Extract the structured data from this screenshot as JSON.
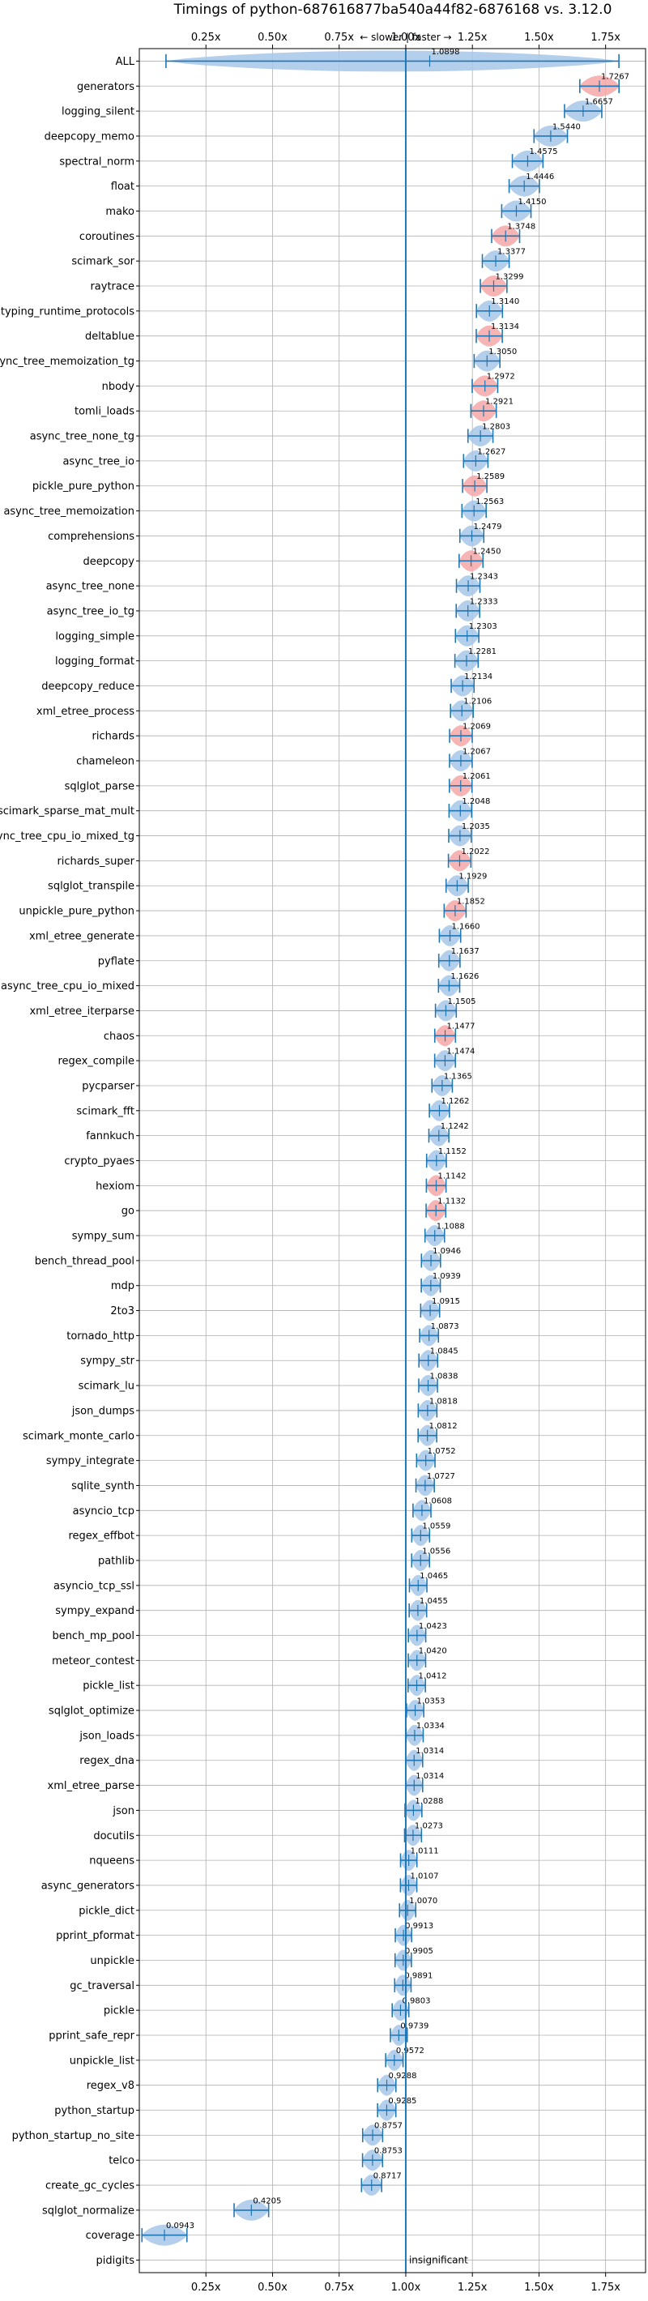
{
  "chart_data": {
    "type": "violin",
    "title": "Timings of python-687616877ba540a44f82-6876168 vs. 3.12.0",
    "xlim": [
      0.0,
      1.9
    ],
    "xticks": [
      "0.25x",
      "0.50x",
      "0.75x",
      "1.00x",
      "1.25x",
      "1.50x",
      "1.75x"
    ],
    "xtick_values": [
      0.25,
      0.5,
      0.75,
      1.0,
      1.25,
      1.5,
      1.75
    ],
    "grid": true,
    "reference_line": 1.0,
    "top_annotation": "← slower | faster →",
    "insignificant_label": "insignificant",
    "colors": {
      "faster_sig": "#f4a7a7",
      "neutral": "#a7c7e7",
      "line": "#1f77b4"
    },
    "benchmarks": [
      {
        "name": "ALL",
        "value": 1.0898,
        "lo": 0.1,
        "hi": 1.8,
        "sig": false
      },
      {
        "name": "generators",
        "value": 1.7267,
        "sig": true
      },
      {
        "name": "logging_silent",
        "value": 1.6657,
        "sig": false
      },
      {
        "name": "deepcopy_memo",
        "value": 1.544,
        "sig": false
      },
      {
        "name": "spectral_norm",
        "value": 1.4575,
        "sig": false
      },
      {
        "name": "float",
        "value": 1.4446,
        "sig": false
      },
      {
        "name": "mako",
        "value": 1.415,
        "sig": false
      },
      {
        "name": "coroutines",
        "value": 1.3748,
        "sig": true
      },
      {
        "name": "scimark_sor",
        "value": 1.3377,
        "sig": false
      },
      {
        "name": "raytrace",
        "value": 1.3299,
        "sig": true
      },
      {
        "name": "typing_runtime_protocols",
        "value": 1.314,
        "sig": false
      },
      {
        "name": "deltablue",
        "value": 1.3134,
        "sig": true
      },
      {
        "name": "async_tree_memoization_tg",
        "value": 1.305,
        "sig": false
      },
      {
        "name": "nbody",
        "value": 1.2972,
        "sig": true
      },
      {
        "name": "tomli_loads",
        "value": 1.2921,
        "sig": true
      },
      {
        "name": "async_tree_none_tg",
        "value": 1.2803,
        "sig": false
      },
      {
        "name": "async_tree_io",
        "value": 1.2627,
        "sig": false
      },
      {
        "name": "pickle_pure_python",
        "value": 1.2589,
        "sig": true
      },
      {
        "name": "async_tree_memoization",
        "value": 1.2563,
        "sig": false
      },
      {
        "name": "comprehensions",
        "value": 1.2479,
        "sig": false
      },
      {
        "name": "deepcopy",
        "value": 1.245,
        "sig": true
      },
      {
        "name": "async_tree_none",
        "value": 1.2343,
        "sig": false
      },
      {
        "name": "async_tree_io_tg",
        "value": 1.2333,
        "sig": false
      },
      {
        "name": "logging_simple",
        "value": 1.2303,
        "sig": false
      },
      {
        "name": "logging_format",
        "value": 1.2281,
        "sig": false
      },
      {
        "name": "deepcopy_reduce",
        "value": 1.2134,
        "sig": false
      },
      {
        "name": "xml_etree_process",
        "value": 1.2106,
        "sig": false
      },
      {
        "name": "richards",
        "value": 1.2069,
        "sig": true
      },
      {
        "name": "chameleon",
        "value": 1.2067,
        "sig": false
      },
      {
        "name": "sqlglot_parse",
        "value": 1.2061,
        "sig": true
      },
      {
        "name": "scimark_sparse_mat_mult",
        "value": 1.2048,
        "sig": false
      },
      {
        "name": "async_tree_cpu_io_mixed_tg",
        "value": 1.2035,
        "sig": false
      },
      {
        "name": "richards_super",
        "value": 1.2022,
        "sig": true
      },
      {
        "name": "sqlglot_transpile",
        "value": 1.1929,
        "sig": false
      },
      {
        "name": "unpickle_pure_python",
        "value": 1.1852,
        "sig": true
      },
      {
        "name": "xml_etree_generate",
        "value": 1.166,
        "sig": false
      },
      {
        "name": "pyflate",
        "value": 1.1637,
        "sig": false
      },
      {
        "name": "async_tree_cpu_io_mixed",
        "value": 1.1626,
        "sig": false
      },
      {
        "name": "xml_etree_iterparse",
        "value": 1.1505,
        "sig": false
      },
      {
        "name": "chaos",
        "value": 1.1477,
        "sig": true
      },
      {
        "name": "regex_compile",
        "value": 1.1474,
        "sig": false
      },
      {
        "name": "pycparser",
        "value": 1.1365,
        "sig": false
      },
      {
        "name": "scimark_fft",
        "value": 1.1262,
        "sig": false
      },
      {
        "name": "fannkuch",
        "value": 1.1242,
        "sig": false
      },
      {
        "name": "crypto_pyaes",
        "value": 1.1152,
        "sig": false
      },
      {
        "name": "hexiom",
        "value": 1.1142,
        "sig": true
      },
      {
        "name": "go",
        "value": 1.1132,
        "sig": true
      },
      {
        "name": "sympy_sum",
        "value": 1.1088,
        "sig": false
      },
      {
        "name": "bench_thread_pool",
        "value": 1.0946,
        "sig": false
      },
      {
        "name": "mdp",
        "value": 1.0939,
        "sig": false
      },
      {
        "name": "2to3",
        "value": 1.0915,
        "sig": false
      },
      {
        "name": "tornado_http",
        "value": 1.0873,
        "sig": false
      },
      {
        "name": "sympy_str",
        "value": 1.0845,
        "sig": false
      },
      {
        "name": "scimark_lu",
        "value": 1.0838,
        "sig": false
      },
      {
        "name": "json_dumps",
        "value": 1.0818,
        "sig": false
      },
      {
        "name": "scimark_monte_carlo",
        "value": 1.0812,
        "sig": false
      },
      {
        "name": "sympy_integrate",
        "value": 1.0752,
        "sig": false
      },
      {
        "name": "sqlite_synth",
        "value": 1.0727,
        "sig": false
      },
      {
        "name": "asyncio_tcp",
        "value": 1.0608,
        "sig": false
      },
      {
        "name": "regex_effbot",
        "value": 1.0559,
        "sig": false
      },
      {
        "name": "pathlib",
        "value": 1.0556,
        "sig": false
      },
      {
        "name": "asyncio_tcp_ssl",
        "value": 1.0465,
        "sig": false
      },
      {
        "name": "sympy_expand",
        "value": 1.0455,
        "sig": false
      },
      {
        "name": "bench_mp_pool",
        "value": 1.0423,
        "sig": false
      },
      {
        "name": "meteor_contest",
        "value": 1.042,
        "sig": false
      },
      {
        "name": "pickle_list",
        "value": 1.0412,
        "sig": false
      },
      {
        "name": "sqlglot_optimize",
        "value": 1.0353,
        "sig": false
      },
      {
        "name": "json_loads",
        "value": 1.0334,
        "sig": false
      },
      {
        "name": "regex_dna",
        "value": 1.0314,
        "sig": false
      },
      {
        "name": "xml_etree_parse",
        "value": 1.0314,
        "sig": false
      },
      {
        "name": "json",
        "value": 1.0288,
        "sig": false
      },
      {
        "name": "docutils",
        "value": 1.0273,
        "sig": false
      },
      {
        "name": "nqueens",
        "value": 1.0111,
        "sig": false
      },
      {
        "name": "async_generators",
        "value": 1.0107,
        "sig": false
      },
      {
        "name": "pickle_dict",
        "value": 1.007,
        "sig": false
      },
      {
        "name": "pprint_pformat",
        "value": 0.9913,
        "sig": false
      },
      {
        "name": "unpickle",
        "value": 0.9905,
        "sig": false
      },
      {
        "name": "gc_traversal",
        "value": 0.9891,
        "sig": false
      },
      {
        "name": "pickle",
        "value": 0.9803,
        "sig": false
      },
      {
        "name": "pprint_safe_repr",
        "value": 0.9739,
        "sig": false
      },
      {
        "name": "unpickle_list",
        "value": 0.9572,
        "sig": false
      },
      {
        "name": "regex_v8",
        "value": 0.9288,
        "sig": false
      },
      {
        "name": "python_startup",
        "value": 0.9285,
        "sig": false
      },
      {
        "name": "python_startup_no_site",
        "value": 0.8757,
        "sig": false
      },
      {
        "name": "telco",
        "value": 0.8753,
        "sig": false
      },
      {
        "name": "create_gc_cycles",
        "value": 0.8717,
        "sig": false
      },
      {
        "name": "sqlglot_normalize",
        "value": 0.4205,
        "sig": false
      },
      {
        "name": "coverage",
        "value": 0.0943,
        "sig": false
      },
      {
        "name": "pidigits",
        "value": null,
        "sig": false
      }
    ]
  }
}
